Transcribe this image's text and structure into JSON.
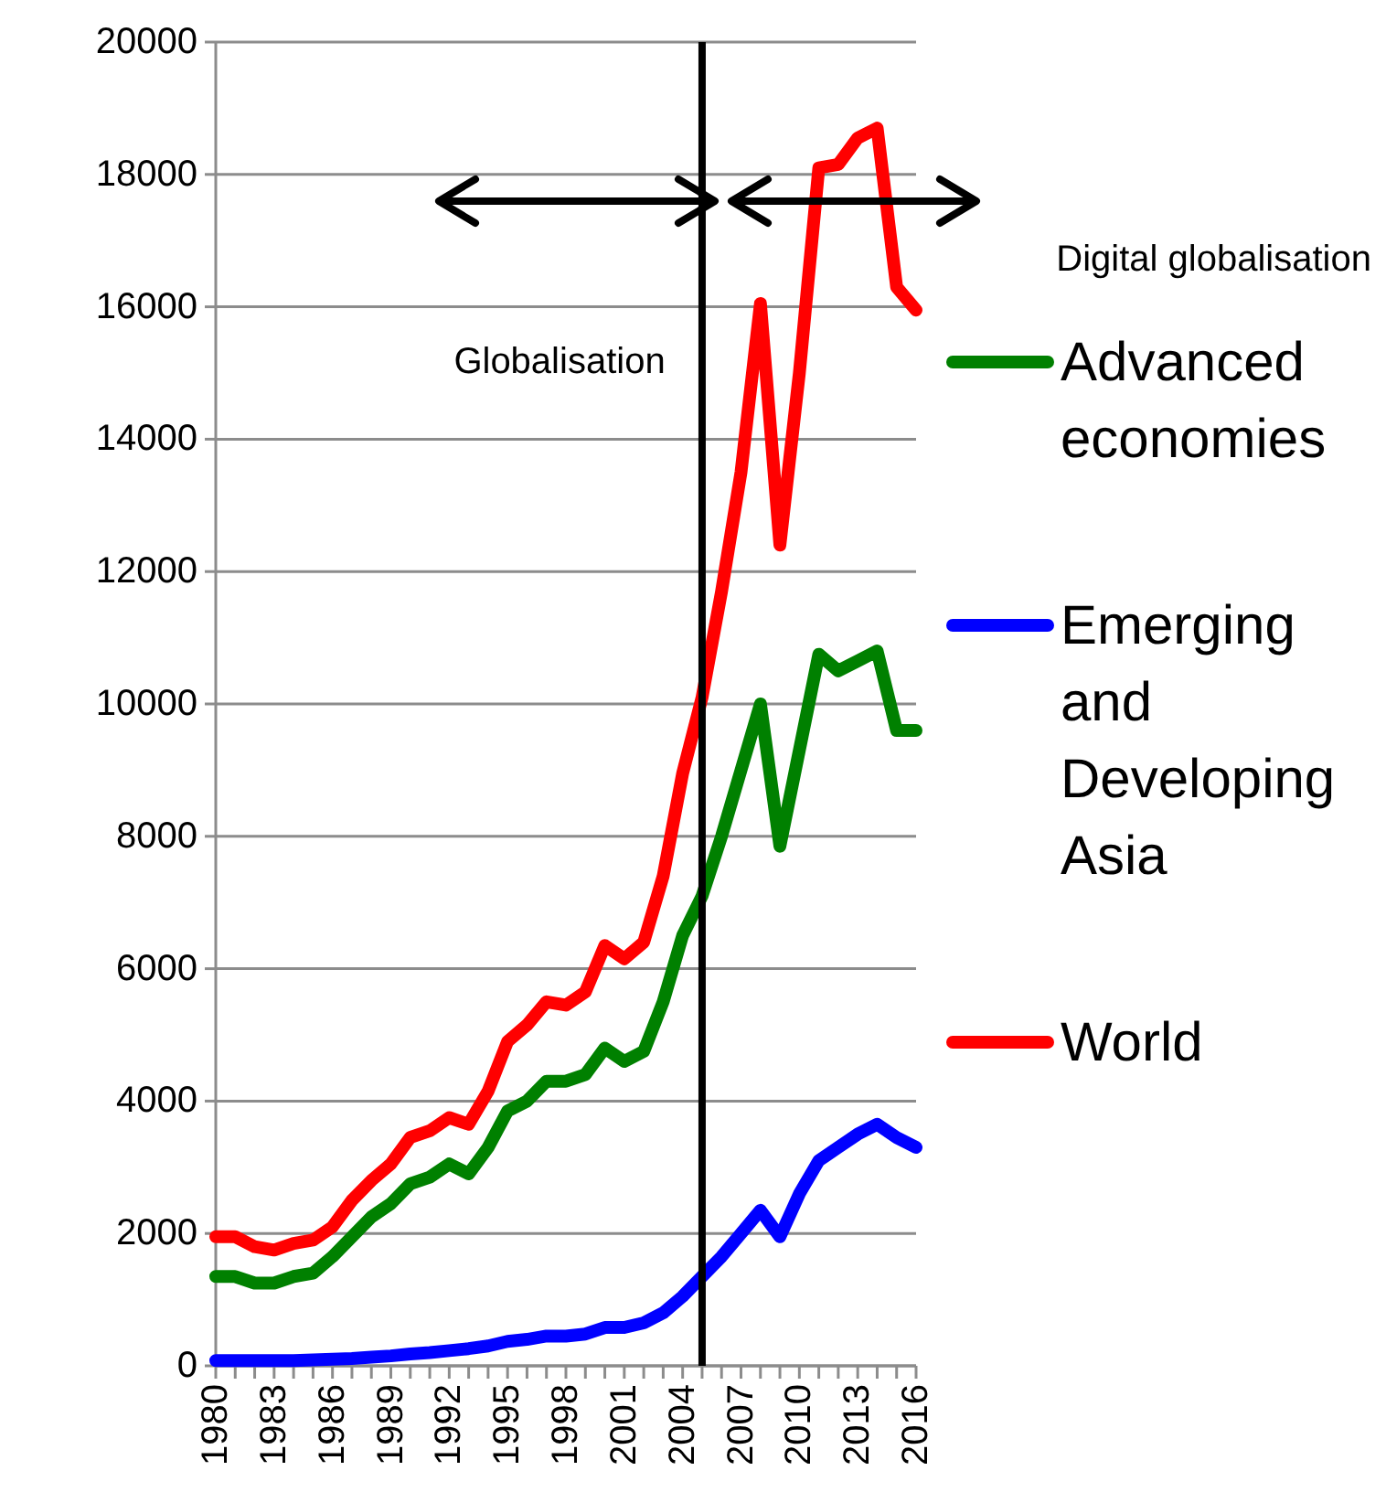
{
  "chart_data": {
    "type": "line",
    "x": [
      1980,
      1981,
      1982,
      1983,
      1984,
      1985,
      1986,
      1987,
      1988,
      1989,
      1990,
      1991,
      1992,
      1993,
      1994,
      1995,
      1996,
      1997,
      1998,
      1999,
      2000,
      2001,
      2002,
      2003,
      2004,
      2005,
      2006,
      2007,
      2008,
      2009,
      2010,
      2011,
      2012,
      2013,
      2014,
      2015,
      2016
    ],
    "series": [
      {
        "name": "Advanced economies",
        "color": "#008000",
        "values": [
          1350,
          1350,
          1250,
          1250,
          1350,
          1400,
          1650,
          1950,
          2250,
          2450,
          2750,
          2850,
          3050,
          2900,
          3300,
          3850,
          4000,
          4300,
          4300,
          4400,
          4800,
          4600,
          4750,
          5500,
          6500,
          7100,
          8000,
          9000,
          10000,
          7850,
          9300,
          10750,
          10500,
          10650,
          10800,
          9600,
          9600
        ]
      },
      {
        "name": "Emerging and Developing Asia",
        "color": "#0000ff",
        "values": [
          80,
          80,
          80,
          80,
          80,
          90,
          100,
          110,
          130,
          150,
          180,
          200,
          230,
          260,
          300,
          370,
          400,
          450,
          450,
          480,
          580,
          580,
          650,
          800,
          1050,
          1350,
          1650,
          2000,
          2350,
          1950,
          2600,
          3100,
          3300,
          3500,
          3650,
          3450,
          3300
        ]
      },
      {
        "name": "World",
        "color": "#ff0000",
        "values": [
          1950,
          1950,
          1800,
          1750,
          1850,
          1900,
          2100,
          2500,
          2800,
          3050,
          3450,
          3550,
          3750,
          3650,
          4150,
          4900,
          5150,
          5500,
          5450,
          5650,
          6350,
          6150,
          6400,
          7400,
          8950,
          10100,
          11700,
          13500,
          16050,
          12400,
          15000,
          18100,
          18150,
          18550,
          18700,
          16300,
          15950
        ]
      }
    ],
    "xlim": [
      1980,
      2016
    ],
    "xticks": [
      {
        "value": 1980,
        "label": "1980"
      },
      {
        "value": 1981,
        "label": null
      },
      {
        "value": 1982,
        "label": null
      },
      {
        "value": 1983,
        "label": "1983"
      },
      {
        "value": 1984,
        "label": null
      },
      {
        "value": 1985,
        "label": null
      },
      {
        "value": 1986,
        "label": "1986"
      },
      {
        "value": 1987,
        "label": null
      },
      {
        "value": 1988,
        "label": null
      },
      {
        "value": 1989,
        "label": "1989"
      },
      {
        "value": 1990,
        "label": null
      },
      {
        "value": 1991,
        "label": null
      },
      {
        "value": 1992,
        "label": "1992"
      },
      {
        "value": 1993,
        "label": null
      },
      {
        "value": 1994,
        "label": null
      },
      {
        "value": 1995,
        "label": "1995"
      },
      {
        "value": 1996,
        "label": null
      },
      {
        "value": 1997,
        "label": null
      },
      {
        "value": 1998,
        "label": "1998"
      },
      {
        "value": 1999,
        "label": null
      },
      {
        "value": 2000,
        "label": null
      },
      {
        "value": 2001,
        "label": "2001"
      },
      {
        "value": 2002,
        "label": null
      },
      {
        "value": 2003,
        "label": null
      },
      {
        "value": 2004,
        "label": "2004"
      },
      {
        "value": 2005,
        "label": null
      },
      {
        "value": 2006,
        "label": null
      },
      {
        "value": 2007,
        "label": "2007"
      },
      {
        "value": 2008,
        "label": null
      },
      {
        "value": 2009,
        "label": null
      },
      {
        "value": 2010,
        "label": "2010"
      },
      {
        "value": 2011,
        "label": null
      },
      {
        "value": 2012,
        "label": null
      },
      {
        "value": 2013,
        "label": "2013"
      },
      {
        "value": 2014,
        "label": null
      },
      {
        "value": 2015,
        "label": null
      },
      {
        "value": 2016,
        "label": "2016"
      }
    ],
    "ylim": [
      0,
      20000
    ],
    "yticks": [
      0,
      2000,
      4000,
      6000,
      8000,
      10000,
      12000,
      14000,
      16000,
      18000,
      20000
    ],
    "grid": "y",
    "legend": "right",
    "line_style": "solid",
    "ref_lines": [
      {
        "axis": "x",
        "value": 2005,
        "color": "#000000"
      }
    ],
    "annotations": [
      "Globalisation",
      "Digital globalisation"
    ]
  }
}
